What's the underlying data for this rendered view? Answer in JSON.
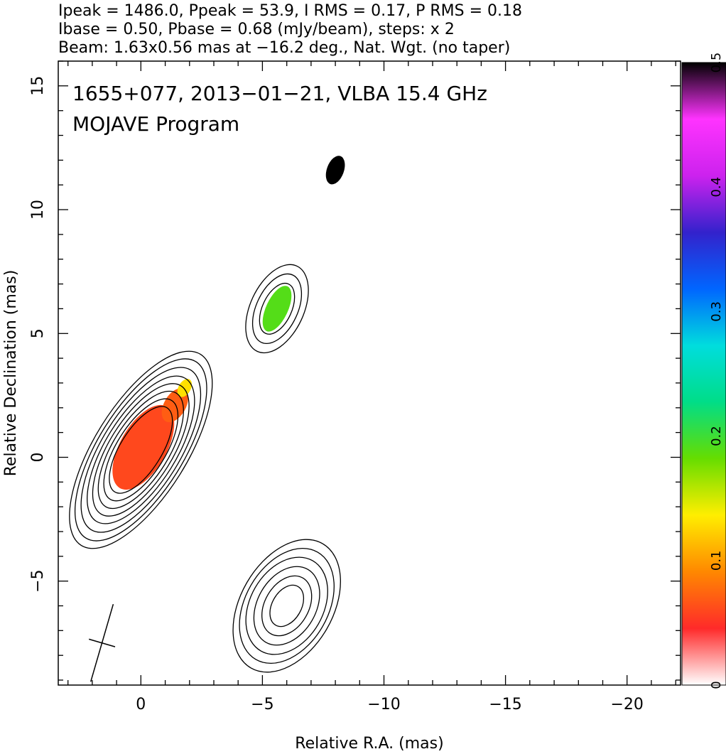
{
  "header": {
    "line1": "Ipeak = 1486.0, Ppeak = 53.9, I RMS = 0.17, P RMS = 0.18",
    "line2": "Ibase = 0.50, Pbase = 0.68 (mJy/beam), steps: x 2",
    "line3": "Beam: 1.63x0.56 mas at −16.2 deg., Nat. Wgt. (no taper)"
  },
  "plot_text": {
    "source_line": "1655+077, 2013−01−21, VLBA 15.4 GHz",
    "program_line": "MOJAVE Program"
  },
  "chart_data": {
    "type": "heatmap",
    "title": "",
    "xlabel": "Relative R.A. (mas)",
    "ylabel": "Relative Declination (mas)",
    "xlim": [
      3.4,
      -22.2
    ],
    "ylim": [
      -9.2,
      16.0
    ],
    "x_ticks": [
      0,
      -5,
      -10,
      -15,
      -20
    ],
    "y_ticks": [
      -5,
      0,
      5,
      10,
      15
    ],
    "x_tick_labels": [
      "0",
      "−5",
      "−10",
      "−15",
      "−20"
    ],
    "y_tick_labels": [
      "−5",
      "0",
      "5",
      "10",
      "15"
    ],
    "colorbar": {
      "min": 0,
      "max": 0.5,
      "ticks": [
        0,
        0.1,
        0.2,
        0.3,
        0.4,
        0.5
      ],
      "tick_labels": [
        "0",
        "0.1",
        "0.2",
        "0.3",
        "0.4",
        "0.5"
      ],
      "colormap": [
        "#ffffff",
        "#ff2a2a",
        "#ff8800",
        "#ffee00",
        "#66dd00",
        "#00dd88",
        "#00dddd",
        "#0066ff",
        "#3322cc",
        "#cc22ee",
        "#ff33ff",
        "#000000"
      ]
    },
    "beam": {
      "major_mas": 1.63,
      "minor_mas": 0.56,
      "pa_deg": -16.2,
      "center": [
        1.6,
        -7.5
      ]
    },
    "components": [
      {
        "name": "core",
        "center": [
          0.0,
          0.3
        ],
        "pa_deg": 32,
        "contour_semi_axes": [
          [
            0.85,
            2.0
          ],
          [
            1.0,
            2.35
          ],
          [
            1.15,
            2.7
          ],
          [
            1.3,
            3.05
          ],
          [
            1.45,
            3.4
          ],
          [
            1.6,
            3.8
          ],
          [
            1.75,
            4.2
          ],
          [
            1.9,
            4.55
          ]
        ]
      },
      {
        "name": "southern-feature",
        "center": [
          -6.0,
          -6.0
        ],
        "pa_deg": 30,
        "contour_semi_axes": [
          [
            0.6,
            0.9
          ],
          [
            0.9,
            1.3
          ],
          [
            1.2,
            1.7
          ],
          [
            1.5,
            2.1
          ],
          [
            1.7,
            2.5
          ],
          [
            1.9,
            2.9
          ]
        ]
      },
      {
        "name": "jet-knot-5",
        "center": [
          -5.6,
          6.0
        ],
        "pa_deg": 25,
        "contour_semi_axes": [
          [
            0.6,
            1.1
          ],
          [
            0.85,
            1.5
          ],
          [
            1.1,
            1.9
          ]
        ]
      }
    ],
    "polarization_regions": [
      {
        "name": "core-pol",
        "center": [
          -0.1,
          0.4
        ],
        "pa_deg": 30,
        "semi_axes": [
          0.95,
          1.9
        ],
        "fraction": 0.06
      },
      {
        "name": "core-pol-ext",
        "center": [
          -1.4,
          2.1
        ],
        "pa_deg": 30,
        "semi_axes": [
          0.45,
          0.75
        ],
        "fraction": 0.07
      },
      {
        "name": "core-pol-tip",
        "center": [
          -1.8,
          2.8
        ],
        "pa_deg": 30,
        "semi_axes": [
          0.25,
          0.4
        ],
        "fraction": 0.13
      },
      {
        "name": "knot-pol",
        "center": [
          -5.6,
          6.0
        ],
        "pa_deg": 25,
        "semi_axes": [
          0.45,
          1.0
        ],
        "fraction": 0.19
      },
      {
        "name": "upper-pol",
        "center": [
          -8.0,
          11.6
        ],
        "pa_deg": 20,
        "semi_axes": [
          0.35,
          0.6
        ],
        "fraction": 0.5
      }
    ]
  }
}
